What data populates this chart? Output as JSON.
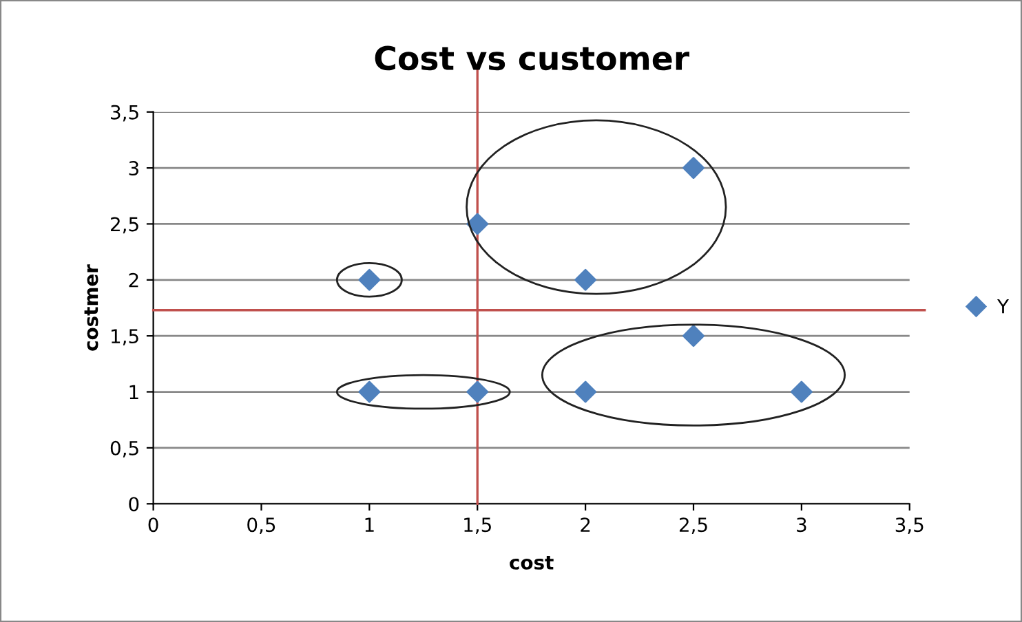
{
  "chart_data": {
    "type": "scatter",
    "title": "Cost vs customer",
    "xlabel": "cost",
    "ylabel": "costmer",
    "x": [
      1,
      1,
      1.5,
      1.5,
      2,
      2,
      2.5,
      2.5,
      3
    ],
    "series": [
      {
        "name": "Y",
        "color": "#4f81bd",
        "values": [
          2,
          1,
          2.5,
          1,
          2,
          1,
          3,
          1.5,
          1
        ]
      }
    ],
    "marker": "diamond",
    "xlim": [
      0,
      3.5
    ],
    "ylim": [
      0,
      3.5
    ],
    "xticks": [
      0,
      {
        "value": 0.5,
        "label": "0,5"
      },
      1,
      {
        "value": 1.5,
        "label": "1,5"
      },
      2,
      {
        "value": 2.5,
        "label": "2,5"
      },
      3,
      {
        "value": 3.5,
        "label": "3,5"
      }
    ],
    "yticks": [
      0,
      {
        "value": 0.5,
        "label": "0,5"
      },
      1,
      {
        "value": 1.5,
        "label": "1,5"
      },
      2,
      {
        "value": 2.5,
        "label": "2,5"
      },
      3,
      {
        "value": 3.5,
        "label": "3,5"
      }
    ],
    "grid": "y",
    "legend": "right",
    "ref_lines": [
      {
        "axis": "x",
        "value": 1.5,
        "color": "#c0504d"
      },
      {
        "axis": "y",
        "value": 1.73,
        "color": "#c0504d"
      }
    ]
  }
}
